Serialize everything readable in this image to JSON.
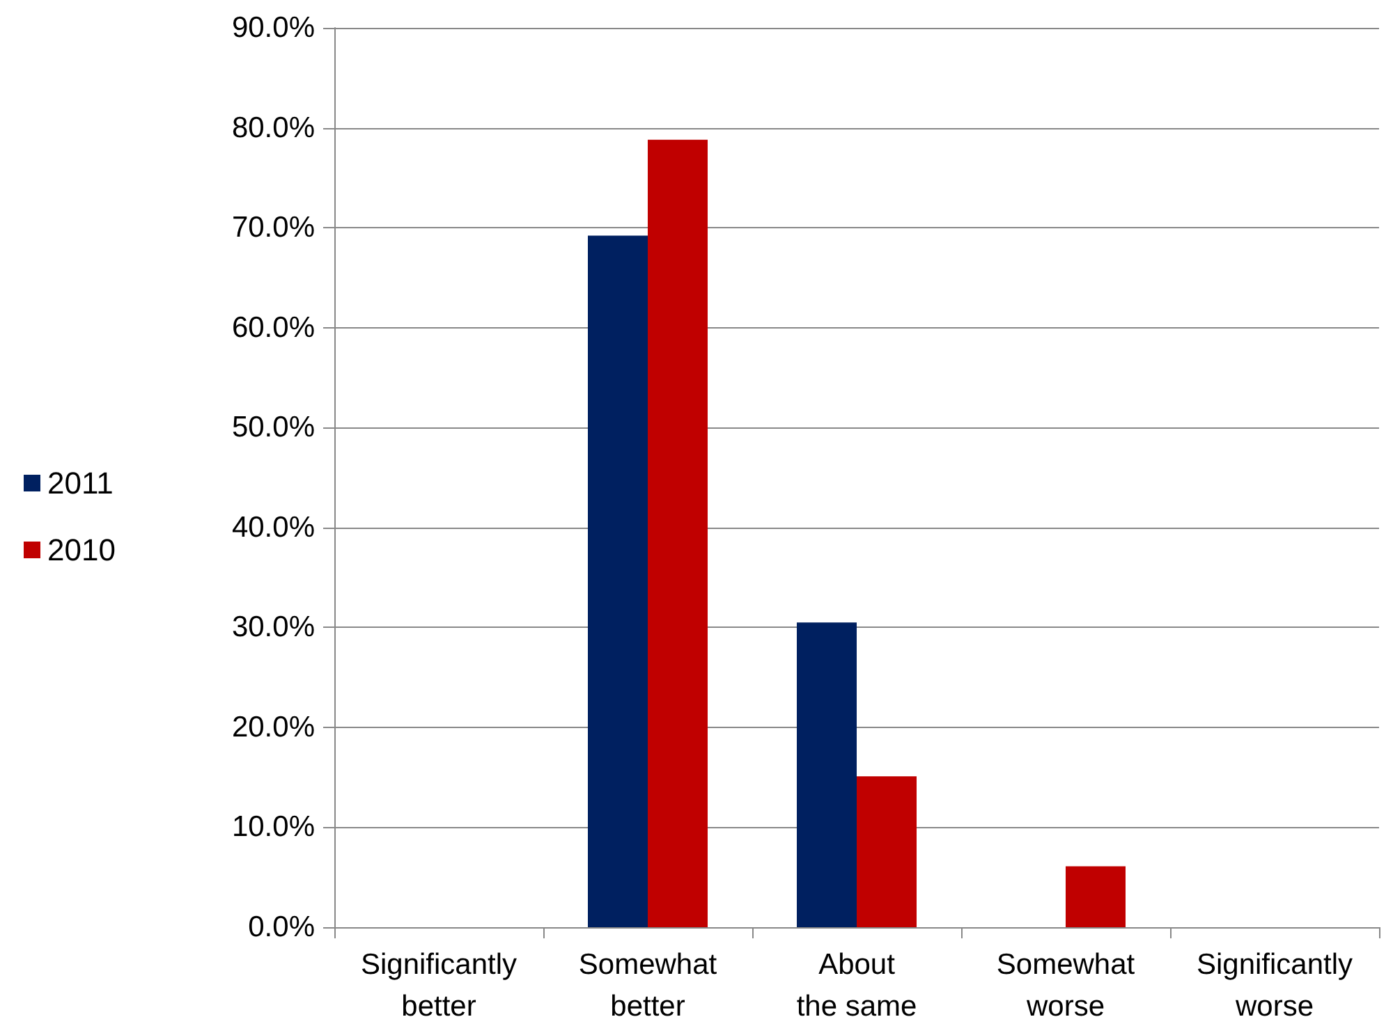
{
  "chart_data": {
    "type": "bar",
    "categories": [
      "Significantly better",
      "Somewhat better",
      "About the same",
      "Somewhat worse",
      "Significantly worse"
    ],
    "series": [
      {
        "name": "2011",
        "color": "#002060",
        "values": [
          0,
          69.2,
          30.5,
          0,
          0
        ]
      },
      {
        "name": "2010",
        "color": "#c00000",
        "values": [
          0,
          78.8,
          15.1,
          6.1,
          0
        ]
      }
    ],
    "ylim": [
      0,
      90
    ],
    "yticks": [
      {
        "value": 0,
        "label": "0.0%"
      },
      {
        "value": 10,
        "label": "10.0%"
      },
      {
        "value": 20,
        "label": "20.0%"
      },
      {
        "value": 30,
        "label": "30.0%"
      },
      {
        "value": 40,
        "label": "40.0%"
      },
      {
        "value": 50,
        "label": "50.0%"
      },
      {
        "value": 60,
        "label": "60.0%"
      },
      {
        "value": 70,
        "label": "70.0%"
      },
      {
        "value": 80,
        "label": "80.0%"
      },
      {
        "value": 90,
        "label": "90.0%"
      }
    ],
    "grid": "y",
    "legend": "left"
  }
}
